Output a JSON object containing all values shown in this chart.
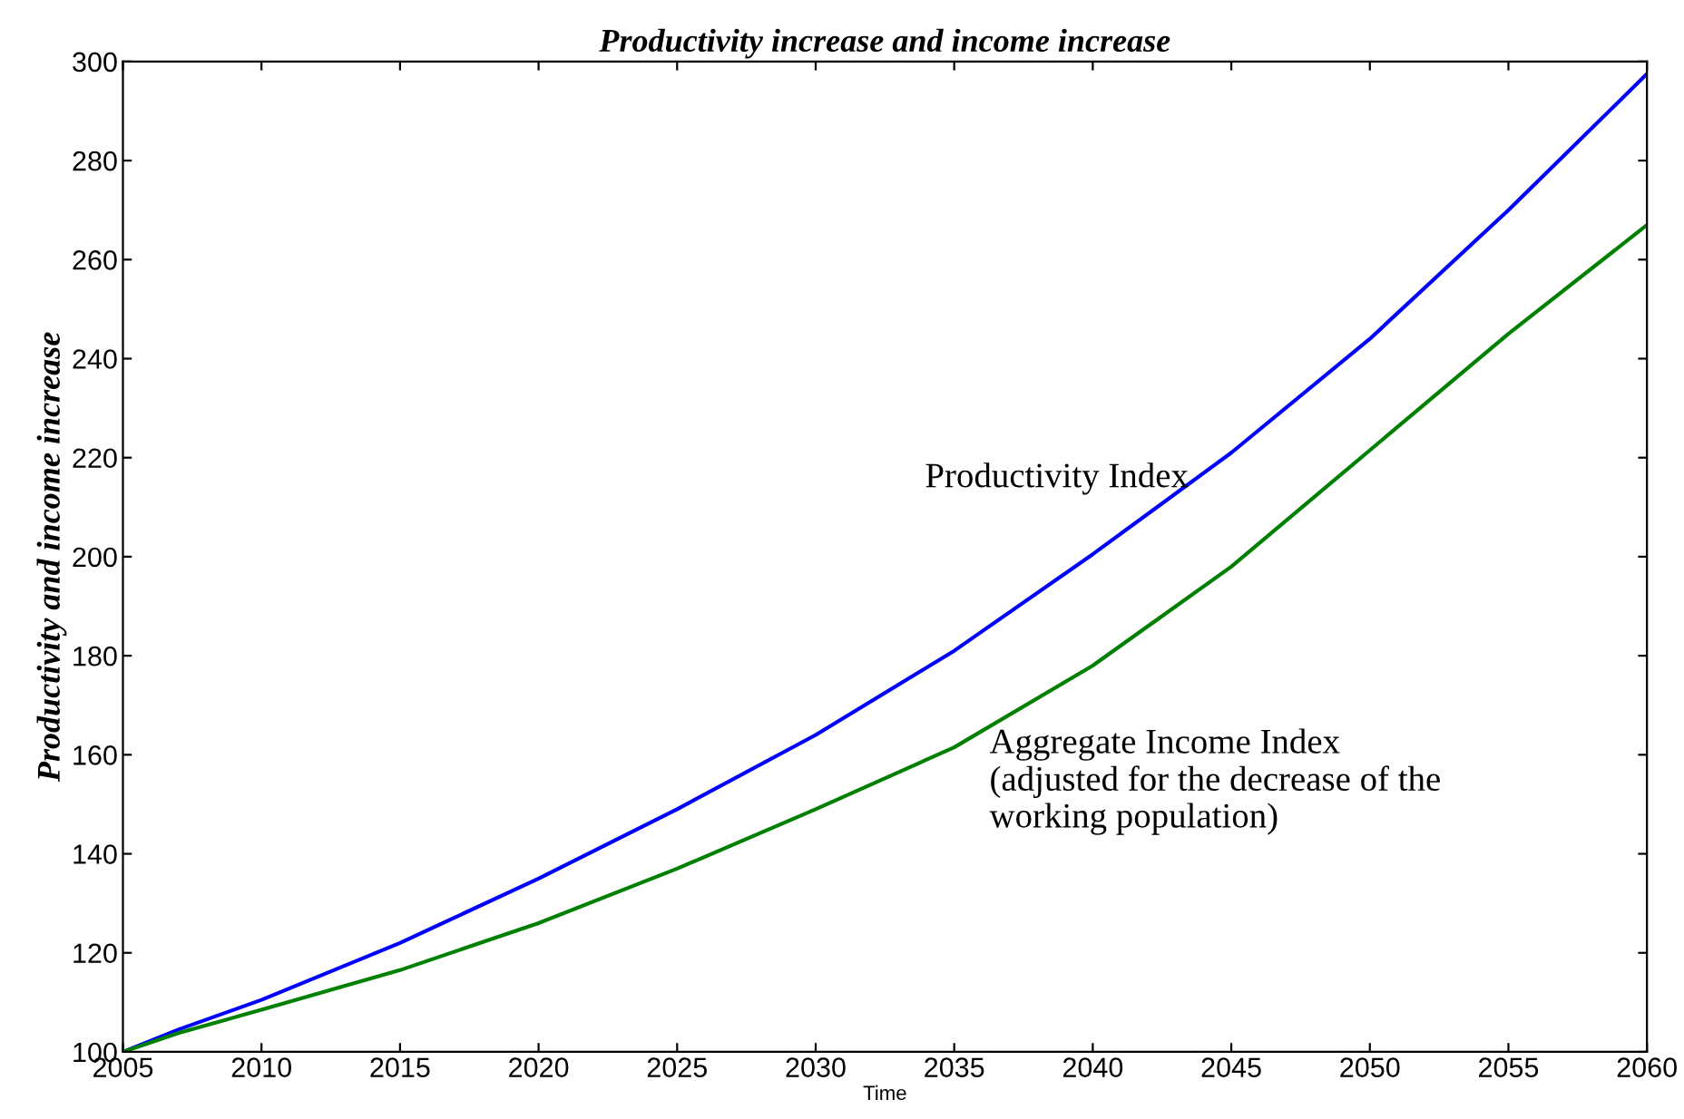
{
  "chart_data": {
    "type": "line",
    "title": "Productivity increase and income increase",
    "xlabel": "Time",
    "ylabel": "Productivity and income increase",
    "x": [
      2005,
      2007,
      2010,
      2015,
      2020,
      2025,
      2030,
      2035,
      2040,
      2045,
      2050,
      2055,
      2060
    ],
    "series": [
      {
        "name": "Productivity Index",
        "color": "#0000ff",
        "values": [
          100,
          104.5,
          110.5,
          122,
          135,
          149,
          164,
          181,
          200.5,
          221,
          244,
          270,
          297.5
        ]
      },
      {
        "name": "Aggregate Income Index\n(adjusted for the decrease of the\nworking population)",
        "color": "#008000",
        "values": [
          100,
          103.8,
          108.5,
          116.5,
          126,
          137,
          149,
          161.5,
          178,
          198,
          221.5,
          245,
          267
        ]
      }
    ],
    "xlim": [
      2005,
      2060
    ],
    "xticks": [
      2005,
      2010,
      2015,
      2020,
      2025,
      2030,
      2035,
      2040,
      2045,
      2050,
      2055,
      2060
    ],
    "ylim": [
      100,
      300
    ],
    "yticks": [
      100,
      120,
      140,
      160,
      180,
      200,
      220,
      240,
      260,
      280,
      300
    ],
    "grid": false,
    "legend": false
  }
}
